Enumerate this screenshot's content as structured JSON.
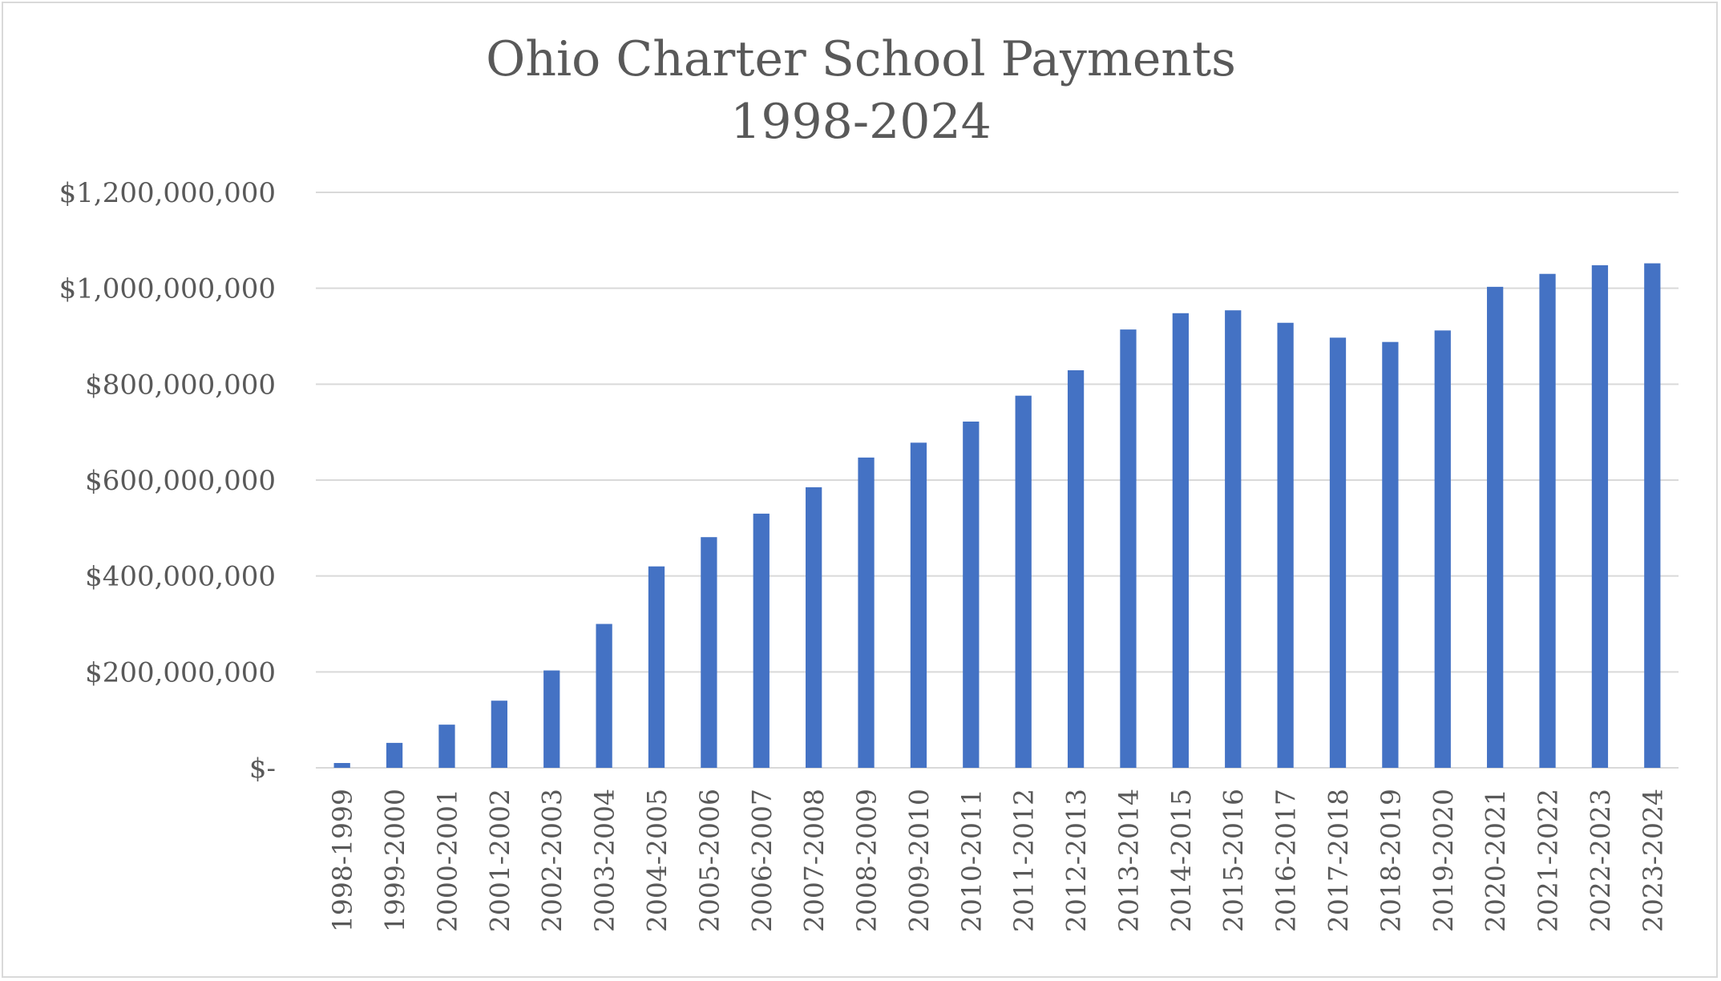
{
  "chart_data": {
    "type": "bar",
    "title": [
      "Ohio Charter School Payments",
      "1998-2024"
    ],
    "xlabel": "",
    "ylabel": "",
    "ylim": [
      0,
      1200000000
    ],
    "yticks": [
      {
        "value": 0,
        "label": "$-"
      },
      {
        "value": 200000000,
        "label": "$200,000,000"
      },
      {
        "value": 400000000,
        "label": "$400,000,000"
      },
      {
        "value": 600000000,
        "label": "$600,000,000"
      },
      {
        "value": 800000000,
        "label": "$800,000,000"
      },
      {
        "value": 1000000000,
        "label": "$1,000,000,000"
      },
      {
        "value": 1200000000,
        "label": "$1,200,000,000"
      }
    ],
    "grid": true,
    "legend": "none",
    "bar_color": "#4472c4",
    "categories": [
      "1998-1999",
      "1999-2000",
      "2000-2001",
      "2001-2002",
      "2002-2003",
      "2003-2004",
      "2004-2005",
      "2005-2006",
      "2006-2007",
      "2007-2008",
      "2008-2009",
      "2009-2010",
      "2010-2011",
      "2011-2012",
      "2012-2013",
      "2013-2014",
      "2014-2015",
      "2015-2016",
      "2016-2017",
      "2017-2018",
      "2018-2019",
      "2019-2020",
      "2020-2021",
      "2021-2022",
      "2022-2023",
      "2023-2024"
    ],
    "values": [
      10000000,
      52000000,
      90000000,
      140000000,
      203000000,
      300000000,
      420000000,
      481000000,
      530000000,
      585000000,
      647000000,
      678000000,
      722000000,
      776000000,
      829000000,
      914000000,
      948000000,
      954000000,
      928000000,
      897000000,
      888000000,
      912000000,
      1003000000,
      1030000000,
      1048000000,
      1052000000
    ]
  }
}
